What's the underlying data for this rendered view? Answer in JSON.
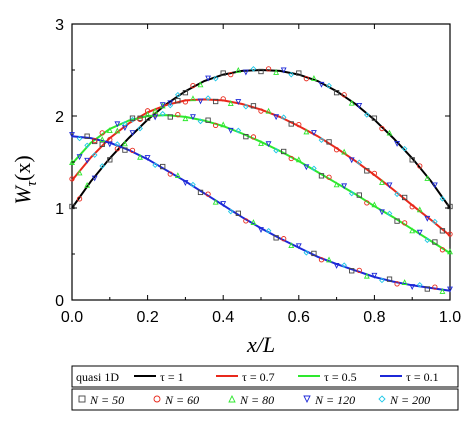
{
  "chart_data": {
    "type": "line",
    "ylabel_main": "W",
    "ylabel_sub": "τ",
    "ylabel_arg": "(x)",
    "xlabel": "x/L",
    "xlim": [
      0,
      1
    ],
    "ylim": [
      0,
      3
    ],
    "x_ticks": [
      "0.0",
      "0.2",
      "0.4",
      "0.6",
      "0.8",
      "1.0"
    ],
    "y_ticks": [
      "0",
      "1",
      "2",
      "3"
    ],
    "legend_row1_title": "quasi 1D",
    "legend_row2_title": "",
    "line_series": [
      {
        "name": "τ = 1",
        "color": "#000000",
        "x": [
          0,
          0.05,
          0.1,
          0.15,
          0.2,
          0.25,
          0.3,
          0.35,
          0.4,
          0.45,
          0.5,
          0.55,
          0.6,
          0.65,
          0.7,
          0.75,
          0.8,
          0.85,
          0.9,
          0.95,
          1.0
        ],
        "y": [
          1.0,
          1.29,
          1.54,
          1.76,
          1.96,
          2.13,
          2.27,
          2.38,
          2.45,
          2.49,
          2.5,
          2.49,
          2.45,
          2.38,
          2.27,
          2.13,
          1.96,
          1.76,
          1.54,
          1.29,
          1.0
        ]
      },
      {
        "name": "τ = 0.7",
        "color": "#e8291c",
        "x": [
          0,
          0.05,
          0.1,
          0.15,
          0.2,
          0.25,
          0.3,
          0.35,
          0.4,
          0.45,
          0.5,
          0.55,
          0.6,
          0.65,
          0.7,
          0.75,
          0.8,
          0.85,
          0.9,
          0.95,
          1.0
        ],
        "y": [
          1.3,
          1.55,
          1.76,
          1.92,
          2.04,
          2.12,
          2.17,
          2.18,
          2.17,
          2.13,
          2.07,
          1.99,
          1.89,
          1.78,
          1.65,
          1.51,
          1.36,
          1.2,
          1.03,
          0.87,
          0.7
        ]
      },
      {
        "name": "τ = 0.5",
        "color": "#2ee82e",
        "x": [
          0,
          0.05,
          0.1,
          0.15,
          0.2,
          0.25,
          0.3,
          0.35,
          0.4,
          0.45,
          0.5,
          0.55,
          0.6,
          0.65,
          0.7,
          0.75,
          0.8,
          0.85,
          0.9,
          0.95,
          1.0
        ],
        "y": [
          1.48,
          1.71,
          1.86,
          1.95,
          2.0,
          2.01,
          1.99,
          1.95,
          1.89,
          1.81,
          1.72,
          1.62,
          1.51,
          1.39,
          1.27,
          1.15,
          1.02,
          0.9,
          0.77,
          0.64,
          0.51
        ]
      },
      {
        "name": "τ = 0.1",
        "color": "#1c28d8",
        "x": [
          0,
          0.05,
          0.1,
          0.15,
          0.2,
          0.25,
          0.3,
          0.35,
          0.4,
          0.45,
          0.5,
          0.55,
          0.6,
          0.65,
          0.7,
          0.75,
          0.8,
          0.85,
          0.9,
          0.95,
          1.0
        ],
        "y": [
          1.78,
          1.76,
          1.71,
          1.63,
          1.53,
          1.41,
          1.29,
          1.16,
          1.03,
          0.9,
          0.78,
          0.67,
          0.57,
          0.47,
          0.39,
          0.32,
          0.25,
          0.2,
          0.16,
          0.13,
          0.1
        ]
      }
    ],
    "marker_series": [
      {
        "name": "N = 50",
        "symbol": "square",
        "color": "#444444"
      },
      {
        "name": "N = 60",
        "symbol": "circle",
        "color": "#e8291c"
      },
      {
        "name": "N = 80",
        "symbol": "triangle-up",
        "color": "#2ee82e"
      },
      {
        "name": "N = 120",
        "symbol": "triangle-down",
        "color": "#1c28d8"
      },
      {
        "name": "N = 200",
        "symbol": "diamond",
        "color": "#20c8e8"
      }
    ]
  }
}
